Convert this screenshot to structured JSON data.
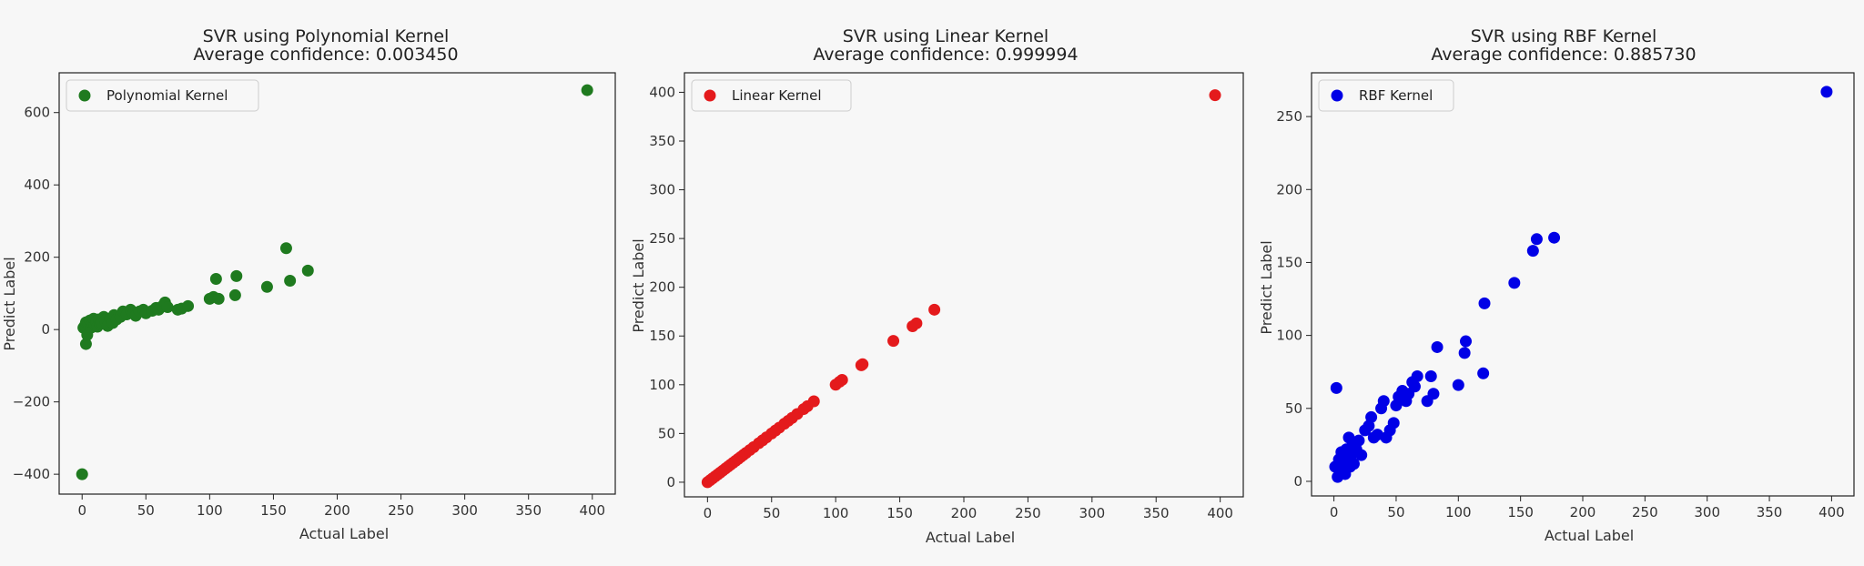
{
  "chart_data": [
    {
      "type": "scatter",
      "title": "SVR using Polynomial Kernel",
      "subtitle": "Average confidence: 0.003450",
      "xlabel": "Actual Label",
      "ylabel": "Predict Label",
      "xlim": [
        -18,
        418
      ],
      "ylim": [
        -455,
        710
      ],
      "xticks": [
        0,
        50,
        100,
        150,
        200,
        250,
        300,
        350,
        400
      ],
      "yticks": [
        -400,
        -200,
        0,
        200,
        400,
        600
      ],
      "color": "#1f7a1f",
      "legend": {
        "label": "Polynomial Kernel",
        "position": "top-left"
      },
      "points": [
        [
          0,
          -400
        ],
        [
          1,
          5
        ],
        [
          2,
          10
        ],
        [
          3,
          -40
        ],
        [
          3,
          20
        ],
        [
          4,
          -15
        ],
        [
          5,
          15
        ],
        [
          6,
          25
        ],
        [
          7,
          5
        ],
        [
          8,
          18
        ],
        [
          9,
          30
        ],
        [
          10,
          12
        ],
        [
          11,
          22
        ],
        [
          12,
          8
        ],
        [
          13,
          28
        ],
        [
          14,
          15
        ],
        [
          15,
          20
        ],
        [
          17,
          35
        ],
        [
          18,
          25
        ],
        [
          20,
          10
        ],
        [
          22,
          30
        ],
        [
          24,
          18
        ],
        [
          25,
          40
        ],
        [
          27,
          28
        ],
        [
          30,
          35
        ],
        [
          32,
          50
        ],
        [
          35,
          42
        ],
        [
          38,
          55
        ],
        [
          40,
          45
        ],
        [
          42,
          38
        ],
        [
          45,
          50
        ],
        [
          48,
          55
        ],
        [
          50,
          45
        ],
        [
          55,
          52
        ],
        [
          58,
          60
        ],
        [
          60,
          55
        ],
        [
          63,
          65
        ],
        [
          65,
          75
        ],
        [
          67,
          62
        ],
        [
          75,
          55
        ],
        [
          78,
          58
        ],
        [
          83,
          65
        ],
        [
          100,
          85
        ],
        [
          103,
          90
        ],
        [
          105,
          140
        ],
        [
          107,
          85
        ],
        [
          120,
          95
        ],
        [
          121,
          148
        ],
        [
          145,
          118
        ],
        [
          160,
          225
        ],
        [
          163,
          135
        ],
        [
          177,
          163
        ],
        [
          396,
          662
        ]
      ]
    },
    {
      "type": "scatter",
      "title": "SVR using Linear Kernel",
      "subtitle": "Average confidence: 0.999994",
      "xlabel": "Actual Label",
      "ylabel": "Predict Label",
      "xlim": [
        -18,
        418
      ],
      "ylim": [
        -15,
        420
      ],
      "xticks": [
        0,
        50,
        100,
        150,
        200,
        250,
        300,
        350,
        400
      ],
      "yticks": [
        0,
        50,
        100,
        150,
        200,
        250,
        300,
        350,
        400
      ],
      "color": "#e41a1c",
      "legend": {
        "label": "Linear Kernel",
        "position": "top-left"
      },
      "points": [
        [
          0,
          0
        ],
        [
          2,
          2
        ],
        [
          4,
          4
        ],
        [
          6,
          6
        ],
        [
          8,
          8
        ],
        [
          10,
          10
        ],
        [
          12,
          12
        ],
        [
          14,
          14
        ],
        [
          16,
          16
        ],
        [
          18,
          18
        ],
        [
          20,
          20
        ],
        [
          22,
          22
        ],
        [
          24,
          24
        ],
        [
          26,
          26
        ],
        [
          28,
          28
        ],
        [
          30,
          30
        ],
        [
          33,
          33
        ],
        [
          36,
          36
        ],
        [
          40,
          40
        ],
        [
          43,
          43
        ],
        [
          46,
          46
        ],
        [
          50,
          50
        ],
        [
          53,
          53
        ],
        [
          56,
          56
        ],
        [
          60,
          60
        ],
        [
          63,
          63
        ],
        [
          66,
          66
        ],
        [
          70,
          70
        ],
        [
          75,
          75
        ],
        [
          78,
          78
        ],
        [
          83,
          83
        ],
        [
          100,
          100
        ],
        [
          103,
          103
        ],
        [
          105,
          105
        ],
        [
          120,
          120
        ],
        [
          121,
          121
        ],
        [
          145,
          145
        ],
        [
          160,
          160
        ],
        [
          163,
          163
        ],
        [
          177,
          177
        ],
        [
          396,
          397
        ]
      ]
    },
    {
      "type": "scatter",
      "title": "SVR using RBF Kernel",
      "subtitle": "Average confidence: 0.885730",
      "xlabel": "Actual Label",
      "ylabel": "Predict Label",
      "xlim": [
        -18,
        418
      ],
      "ylim": [
        -10,
        280
      ],
      "xticks": [
        0,
        50,
        100,
        150,
        200,
        250,
        300,
        350,
        400
      ],
      "yticks": [
        0,
        50,
        100,
        150,
        200,
        250
      ],
      "color": "#0000e6",
      "legend": {
        "label": "RBF Kernel",
        "position": "top-left"
      },
      "points": [
        [
          1,
          10
        ],
        [
          2,
          64
        ],
        [
          3,
          3
        ],
        [
          4,
          15
        ],
        [
          5,
          8
        ],
        [
          6,
          20
        ],
        [
          7,
          12
        ],
        [
          8,
          18
        ],
        [
          9,
          5
        ],
        [
          10,
          22
        ],
        [
          11,
          15
        ],
        [
          12,
          30
        ],
        [
          13,
          10
        ],
        [
          14,
          18
        ],
        [
          15,
          25
        ],
        [
          16,
          12
        ],
        [
          18,
          22
        ],
        [
          20,
          28
        ],
        [
          22,
          18
        ],
        [
          25,
          35
        ],
        [
          28,
          38
        ],
        [
          30,
          44
        ],
        [
          32,
          30
        ],
        [
          35,
          32
        ],
        [
          38,
          50
        ],
        [
          40,
          55
        ],
        [
          42,
          30
        ],
        [
          45,
          35
        ],
        [
          48,
          40
        ],
        [
          50,
          52
        ],
        [
          52,
          58
        ],
        [
          55,
          62
        ],
        [
          58,
          55
        ],
        [
          60,
          60
        ],
        [
          63,
          68
        ],
        [
          65,
          65
        ],
        [
          67,
          72
        ],
        [
          75,
          55
        ],
        [
          78,
          72
        ],
        [
          80,
          60
        ],
        [
          83,
          92
        ],
        [
          100,
          66
        ],
        [
          105,
          88
        ],
        [
          106,
          96
        ],
        [
          120,
          74
        ],
        [
          121,
          122
        ],
        [
          145,
          136
        ],
        [
          160,
          158
        ],
        [
          163,
          166
        ],
        [
          177,
          167
        ],
        [
          396,
          267
        ]
      ]
    }
  ]
}
